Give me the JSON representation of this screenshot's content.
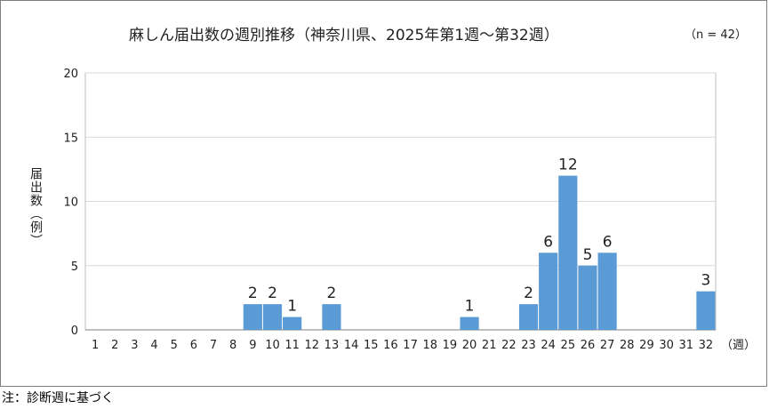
{
  "chart_data": {
    "type": "bar",
    "title": "麻しん届出数の週別推移（神奈川県、2025年第1週～第32週）",
    "subtitle": "（n = 42）",
    "ylabel": "届出数（例）",
    "xlabel": "（週）",
    "ylim": [
      0,
      20
    ],
    "yticks": [
      0,
      5,
      10,
      15,
      20
    ],
    "grid": true,
    "bar_color": "#5b9bd5",
    "categories": [
      "1",
      "2",
      "3",
      "4",
      "5",
      "6",
      "7",
      "8",
      "9",
      "10",
      "11",
      "12",
      "13",
      "14",
      "15",
      "16",
      "17",
      "18",
      "19",
      "20",
      "21",
      "22",
      "23",
      "24",
      "25",
      "26",
      "27",
      "28",
      "29",
      "30",
      "31",
      "32"
    ],
    "values": [
      0,
      0,
      0,
      0,
      0,
      0,
      0,
      0,
      2,
      2,
      1,
      0,
      2,
      0,
      0,
      0,
      0,
      0,
      0,
      1,
      0,
      0,
      2,
      6,
      12,
      5,
      6,
      0,
      0,
      0,
      0,
      3
    ]
  },
  "footnote": "注：診断週に基づく"
}
